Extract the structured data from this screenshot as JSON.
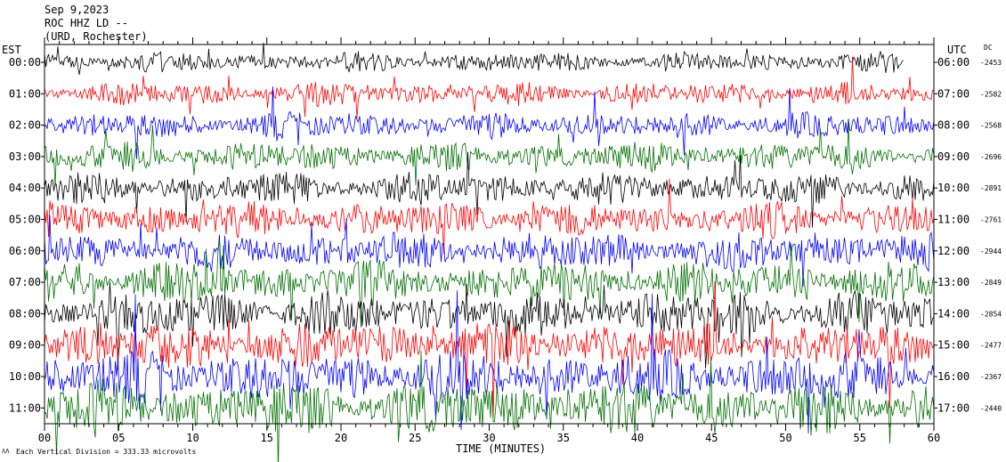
{
  "header": {
    "date": "Sep 9,2023",
    "station": "ROC HHZ LD --",
    "location": "(URD, Rochester)"
  },
  "labels": {
    "left_tz": "EST",
    "right_tz": "UTC",
    "dc": "DC",
    "xlabel": "TIME (MINUTES)",
    "footer": "Each Vertical Division =  333.33 microvolts"
  },
  "colors": {
    "cycle": [
      "#000000",
      "#ff0000",
      "#0000ff",
      "#007000"
    ]
  },
  "chart_data": {
    "type": "line",
    "title": "Sep 9,2023 ROC HHZ LD -- (URD, Rochester)",
    "xlabel": "TIME (MINUTES)",
    "ylabel": "",
    "xlim": [
      0,
      60
    ],
    "x_ticks": [
      "00",
      "05",
      "10",
      "15",
      "20",
      "25",
      "30",
      "35",
      "40",
      "45",
      "50",
      "55",
      "60"
    ],
    "left_ticks": [
      "00:00",
      "01:00",
      "02:00",
      "03:00",
      "04:00",
      "05:00",
      "06:00",
      "07:00",
      "08:00",
      "09:00",
      "10:00",
      "11:00"
    ],
    "right_ticks": [
      "06:00",
      "07:00",
      "08:00",
      "09:00",
      "10:00",
      "11:00",
      "12:00",
      "13:00",
      "14:00",
      "15:00",
      "16:00",
      "17:00"
    ],
    "dc_values": [
      "-2453",
      "-2582",
      "-2568",
      "-2696",
      "-2891",
      "-2761",
      "-2944",
      "-2849",
      "-2854",
      "-2477",
      "-2367",
      "-2440"
    ],
    "grid": false,
    "legend": "none"
  }
}
